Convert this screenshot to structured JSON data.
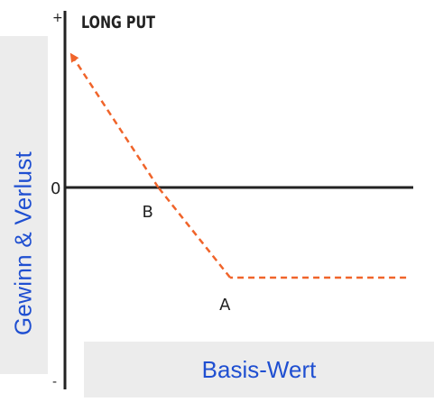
{
  "chart_data": {
    "type": "line",
    "title": "LONG PUT",
    "xlabel": "Basis-Wert",
    "ylabel": "Gewinn & Verlust",
    "y_tick_labels": {
      "top": "+",
      "zero": "0",
      "bottom": "-"
    },
    "point_labels": [
      "B",
      "A"
    ],
    "xlim": [
      0,
      100
    ],
    "ylim": [
      -100,
      100
    ],
    "series": [
      {
        "style": "dashed",
        "color": "#f0642a",
        "points": [
          {
            "x": 2,
            "y": 73
          },
          {
            "x": 26,
            "y": 0,
            "label": "B"
          },
          {
            "x": 46,
            "y": -50,
            "label": "A"
          },
          {
            "x": 95,
            "y": -50
          }
        ]
      }
    ],
    "grid": false,
    "legend": "none"
  },
  "colors": {
    "axis": "#222222",
    "line": "#f0642a",
    "labels": "#1f4fd1",
    "label_box": "#ececec"
  }
}
